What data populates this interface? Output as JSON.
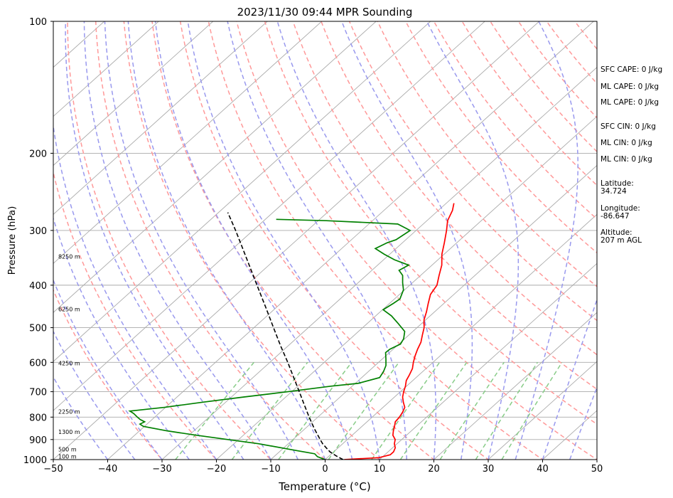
{
  "chart_data": {
    "type": "line",
    "title": "2023/11/30 09:44 MPR Sounding",
    "xlabel": "Temperature (°C)",
    "ylabel": "Pressure (hPa)",
    "xlim": [
      -50,
      50
    ],
    "ylim": [
      1000,
      100
    ],
    "y_scale": "log",
    "x_ticks": [
      -50,
      -40,
      -30,
      -20,
      -10,
      0,
      10,
      20,
      30,
      40,
      50
    ],
    "y_ticks": [
      1000,
      900,
      800,
      700,
      600,
      500,
      400,
      300,
      200,
      100
    ],
    "grid": true,
    "skew": "skew-T",
    "series": [
      {
        "name": "temperature",
        "color": "#ff0000",
        "points": [
          [
            1000,
            3.5
          ],
          [
            990,
            9.5
          ],
          [
            975,
            11.0
          ],
          [
            960,
            11.0
          ],
          [
            940,
            10.5
          ],
          [
            920,
            9.5
          ],
          [
            900,
            8.8
          ],
          [
            880,
            7.5
          ],
          [
            860,
            6.7
          ],
          [
            840,
            6.0
          ],
          [
            820,
            5.2
          ],
          [
            800,
            5.0
          ],
          [
            780,
            4.6
          ],
          [
            760,
            4.0
          ],
          [
            740,
            2.7
          ],
          [
            720,
            1.5
          ],
          [
            700,
            0.6
          ],
          [
            680,
            -0.2
          ],
          [
            660,
            -1.2
          ],
          [
            640,
            -1.8
          ],
          [
            620,
            -2.5
          ],
          [
            600,
            -3.6
          ],
          [
            580,
            -4.6
          ],
          [
            560,
            -5.5
          ],
          [
            540,
            -6.3
          ],
          [
            520,
            -7.5
          ],
          [
            500,
            -8.7
          ],
          [
            480,
            -10.3
          ],
          [
            460,
            -11.5
          ],
          [
            440,
            -12.9
          ],
          [
            420,
            -14.3
          ],
          [
            400,
            -15.0
          ],
          [
            380,
            -16.6
          ],
          [
            360,
            -18.2
          ],
          [
            340,
            -20.4
          ],
          [
            320,
            -22.3
          ],
          [
            300,
            -24.4
          ],
          [
            285,
            -26.2
          ],
          [
            270,
            -27.4
          ],
          [
            260,
            -28.6
          ]
        ]
      },
      {
        "name": "dewpoint",
        "color": "#008000",
        "points": [
          [
            1000,
            0.0
          ],
          [
            985,
            -2.0
          ],
          [
            970,
            -3.1
          ],
          [
            950,
            -8.0
          ],
          [
            920,
            -15.5
          ],
          [
            900,
            -22.0
          ],
          [
            880,
            -28.6
          ],
          [
            860,
            -34.9
          ],
          [
            840,
            -40.2
          ],
          [
            830,
            -41.3
          ],
          [
            820,
            -40.9
          ],
          [
            810,
            -42.2
          ],
          [
            800,
            -43.2
          ],
          [
            785,
            -44.6
          ],
          [
            775,
            -45.8
          ],
          [
            760,
            -40.2
          ],
          [
            740,
            -34.3
          ],
          [
            720,
            -27.8
          ],
          [
            700,
            -20.7
          ],
          [
            680,
            -13.9
          ],
          [
            670,
            -9.5
          ],
          [
            650,
            -6.7
          ],
          [
            630,
            -7.2
          ],
          [
            610,
            -8.0
          ],
          [
            590,
            -9.3
          ],
          [
            570,
            -10.7
          ],
          [
            560,
            -10.6
          ],
          [
            545,
            -9.7
          ],
          [
            530,
            -10.2
          ],
          [
            510,
            -11.5
          ],
          [
            490,
            -14.2
          ],
          [
            470,
            -17.1
          ],
          [
            455,
            -19.9
          ],
          [
            440,
            -19.3
          ],
          [
            430,
            -19.0
          ],
          [
            410,
            -20.2
          ],
          [
            395,
            -21.8
          ],
          [
            380,
            -23.3
          ],
          [
            370,
            -25.0
          ],
          [
            360,
            -24.3
          ],
          [
            350,
            -28.0
          ],
          [
            340,
            -31.0
          ],
          [
            330,
            -33.8
          ],
          [
            320,
            -32.8
          ],
          [
            315,
            -31.8
          ],
          [
            300,
            -31.1
          ],
          [
            290,
            -34.7
          ],
          [
            285,
            -48.5
          ],
          [
            283,
            -58.0
          ]
        ]
      },
      {
        "name": "parcel",
        "color": "#000000",
        "points": [
          [
            1000,
            3.3
          ],
          [
            980,
            1.2
          ],
          [
            960,
            -0.7
          ],
          [
            940,
            -2.2
          ],
          [
            920,
            -3.7
          ],
          [
            900,
            -5.0
          ],
          [
            850,
            -8.3
          ],
          [
            800,
            -11.6
          ],
          [
            750,
            -15.0
          ],
          [
            700,
            -18.6
          ],
          [
            650,
            -22.5
          ],
          [
            600,
            -26.7
          ],
          [
            550,
            -31.4
          ],
          [
            500,
            -36.4
          ],
          [
            450,
            -41.9
          ],
          [
            400,
            -48.1
          ],
          [
            350,
            -55.1
          ],
          [
            300,
            -63.2
          ],
          [
            273,
            -68.3
          ]
        ]
      }
    ],
    "height_labels": [
      {
        "p": 987,
        "label": "100 m"
      },
      {
        "p": 950,
        "label": "500 m"
      },
      {
        "p": 868,
        "label": "1300 m"
      },
      {
        "p": 780,
        "label": "2250 m"
      },
      {
        "p": 605,
        "label": "4250 m"
      },
      {
        "p": 455,
        "label": "6250 m"
      },
      {
        "p": 345,
        "label": "8250 m"
      }
    ],
    "annotations": {
      "sfc_cape": "SFC CAPE: 0 J/kg",
      "ml_cape_1": "ML CAPE: 0 J/kg",
      "ml_cape_2": "ML CAPE: 0 J/kg",
      "sfc_cin": "SFC CIN: 0 J/kg",
      "ml_cin_1": "ML CIN: 0 J/kg",
      "ml_cin_2": "ML CIN: 0 J/kg",
      "latitude_label": "Latitude:",
      "latitude_value": "34.724",
      "longitude_label": "Longitude:",
      "longitude_value": "-86.647",
      "altitude_label": "Altitude:",
      "altitude_value": "207 m AGL"
    },
    "colors": {
      "dry_adiabat": "#ff9999",
      "moist_adiabat": "#9999ee",
      "mixing_ratio": "#88cc88",
      "isotherm": "#aaaaaa"
    }
  }
}
